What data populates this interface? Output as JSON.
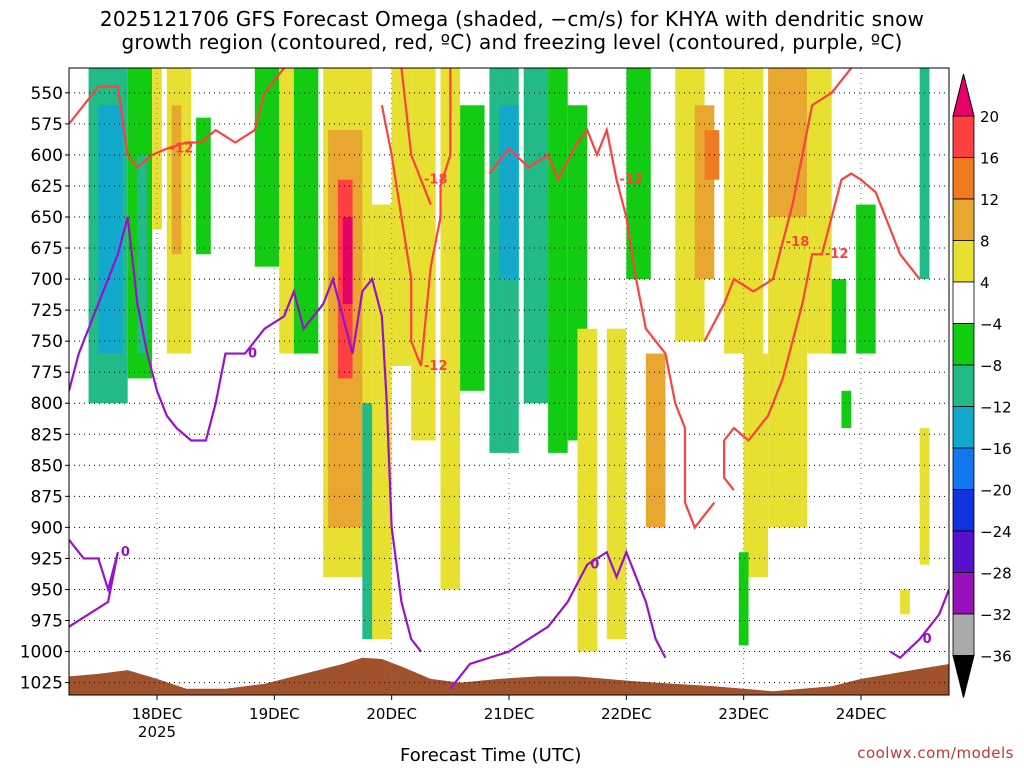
{
  "title_line1": "2025121706 GFS Forecast Omega (shaded, −cm/s) for KHYA with dendritic snow",
  "title_line2": "growth region (contoured, red, ºC) and freezing level (contoured, purple, ºC)",
  "x_axis_title": "Forecast Time (UTC)",
  "credit": "coolwx.com/models",
  "chart_data": {
    "type": "heatmap",
    "title": "2025121706 GFS Forecast Omega (shaded, −cm/s) for KHYA",
    "xlabel": "Forecast Time (UTC)",
    "ylabel": "",
    "x_ticks": [
      {
        "label": "18DEC",
        "sublabel": "2025",
        "hours": 18
      },
      {
        "label": "19DEC",
        "hours": 42
      },
      {
        "label": "20DEC",
        "hours": 66
      },
      {
        "label": "21DEC",
        "hours": 90
      },
      {
        "label": "22DEC",
        "hours": 114
      },
      {
        "label": "23DEC",
        "hours": 138
      },
      {
        "label": "24DEC",
        "hours": 162
      }
    ],
    "xlim_hours": [
      0,
      180
    ],
    "y_ticks": [
      550,
      575,
      600,
      625,
      650,
      675,
      700,
      725,
      750,
      775,
      800,
      825,
      850,
      875,
      900,
      925,
      950,
      975,
      1000,
      1025
    ],
    "ylim": [
      1035,
      530
    ],
    "colorbar": {
      "labels": [
        "20",
        "16",
        "12",
        "8",
        "4",
        "−4",
        "−8",
        "−12",
        "−16",
        "−20",
        "−24",
        "−28",
        "−32",
        "−36"
      ],
      "colors": [
        "#e8006a",
        "#ff4040",
        "#f07a20",
        "#e8a830",
        "#e8e030",
        "#ffffff",
        "#11cc11",
        "#22bb88",
        "#11aacc",
        "#1177ee",
        "#1133dd",
        "#5511cc",
        "#9911bb",
        "#aaaaaa",
        "#000000"
      ]
    },
    "cells": [
      {
        "x0": 4,
        "x1": 12,
        "p0": 530,
        "p1": 800,
        "c": 7
      },
      {
        "x0": 6,
        "x1": 11,
        "p0": 560,
        "p1": 760,
        "c": 8
      },
      {
        "x0": 12,
        "x1": 17,
        "p0": 530,
        "p1": 780,
        "c": 6
      },
      {
        "x0": 14,
        "x1": 16,
        "p0": 600,
        "p1": 760,
        "c": 7
      },
      {
        "x0": 17,
        "x1": 19,
        "p0": 530,
        "p1": 660,
        "c": 4
      },
      {
        "x0": 20,
        "x1": 25,
        "p0": 530,
        "p1": 760,
        "c": 4
      },
      {
        "x0": 21,
        "x1": 23,
        "p0": 560,
        "p1": 680,
        "c": 3
      },
      {
        "x0": 26,
        "x1": 29,
        "p0": 570,
        "p1": 680,
        "c": 6
      },
      {
        "x0": 38,
        "x1": 43,
        "p0": 530,
        "p1": 690,
        "c": 6
      },
      {
        "x0": 43,
        "x1": 46,
        "p0": 530,
        "p1": 760,
        "c": 4
      },
      {
        "x0": 46,
        "x1": 51,
        "p0": 530,
        "p1": 760,
        "c": 6
      },
      {
        "x0": 52,
        "x1": 62,
        "p0": 530,
        "p1": 940,
        "c": 4
      },
      {
        "x0": 53,
        "x1": 60,
        "p0": 580,
        "p1": 900,
        "c": 3
      },
      {
        "x0": 55,
        "x1": 58,
        "p0": 620,
        "p1": 780,
        "c": 1
      },
      {
        "x0": 56,
        "x1": 58,
        "p0": 650,
        "p1": 720,
        "c": 0
      },
      {
        "x0": 60,
        "x1": 65,
        "p0": 800,
        "p1": 990,
        "c": 7
      },
      {
        "x0": 62,
        "x1": 66,
        "p0": 640,
        "p1": 990,
        "c": 4
      },
      {
        "x0": 66,
        "x1": 70,
        "p0": 530,
        "p1": 770,
        "c": 4
      },
      {
        "x0": 70,
        "x1": 75,
        "p0": 530,
        "p1": 830,
        "c": 4
      },
      {
        "x0": 76,
        "x1": 80,
        "p0": 530,
        "p1": 950,
        "c": 4
      },
      {
        "x0": 80,
        "x1": 85,
        "p0": 560,
        "p1": 790,
        "c": 6
      },
      {
        "x0": 86,
        "x1": 92,
        "p0": 530,
        "p1": 840,
        "c": 7
      },
      {
        "x0": 88,
        "x1": 92,
        "p0": 560,
        "p1": 700,
        "c": 8
      },
      {
        "x0": 93,
        "x1": 98,
        "p0": 530,
        "p1": 800,
        "c": 7
      },
      {
        "x0": 98,
        "x1": 102,
        "p0": 530,
        "p1": 840,
        "c": 6
      },
      {
        "x0": 102,
        "x1": 106,
        "p0": 560,
        "p1": 830,
        "c": 6
      },
      {
        "x0": 104,
        "x1": 108,
        "p0": 740,
        "p1": 1000,
        "c": 4
      },
      {
        "x0": 110,
        "x1": 114,
        "p0": 740,
        "p1": 990,
        "c": 4
      },
      {
        "x0": 114,
        "x1": 119,
        "p0": 530,
        "p1": 700,
        "c": 6
      },
      {
        "x0": 118,
        "x1": 122,
        "p0": 760,
        "p1": 900,
        "c": 3
      },
      {
        "x0": 124,
        "x1": 130,
        "p0": 530,
        "p1": 750,
        "c": 4
      },
      {
        "x0": 128,
        "x1": 132,
        "p0": 560,
        "p1": 700,
        "c": 3
      },
      {
        "x0": 130,
        "x1": 133,
        "p0": 580,
        "p1": 620,
        "c": 2
      },
      {
        "x0": 134,
        "x1": 142,
        "p0": 530,
        "p1": 760,
        "c": 4
      },
      {
        "x0": 138,
        "x1": 143,
        "p0": 760,
        "p1": 940,
        "c": 4
      },
      {
        "x0": 137,
        "x1": 139,
        "p0": 920,
        "p1": 995,
        "c": 6
      },
      {
        "x0": 143,
        "x1": 151,
        "p0": 530,
        "p1": 650,
        "c": 3
      },
      {
        "x0": 143,
        "x1": 151,
        "p0": 650,
        "p1": 900,
        "c": 4
      },
      {
        "x0": 151,
        "x1": 156,
        "p0": 530,
        "p1": 760,
        "c": 4
      },
      {
        "x0": 156,
        "x1": 159,
        "p0": 700,
        "p1": 760,
        "c": 6
      },
      {
        "x0": 161,
        "x1": 165,
        "p0": 640,
        "p1": 760,
        "c": 6
      },
      {
        "x0": 158,
        "x1": 160,
        "p0": 790,
        "p1": 820,
        "c": 6
      },
      {
        "x0": 174,
        "x1": 176,
        "p0": 530,
        "p1": 700,
        "c": 7
      },
      {
        "x0": 174,
        "x1": 176,
        "p0": 820,
        "p1": 930,
        "c": 4
      },
      {
        "x0": 170,
        "x1": 172,
        "p0": 950,
        "p1": 970,
        "c": 4
      }
    ],
    "dgz_contours": [
      {
        "label": "-12",
        "values": [
          [
            0,
            575
          ],
          [
            3,
            560
          ],
          [
            6,
            545
          ],
          [
            10,
            545
          ],
          [
            12,
            600
          ],
          [
            14,
            610
          ],
          [
            17,
            600
          ],
          [
            20,
            595
          ],
          [
            24,
            590
          ],
          [
            27,
            590
          ],
          [
            30,
            580
          ],
          [
            34,
            590
          ],
          [
            38,
            580
          ],
          [
            40,
            550
          ],
          [
            44,
            530
          ]
        ]
      },
      {
        "label": "-18",
        "values": [
          [
            68,
            530
          ],
          [
            70,
            600
          ],
          [
            72,
            620
          ],
          [
            74,
            640
          ]
        ]
      },
      {
        "label": "-12",
        "values": [
          [
            78,
            530
          ],
          [
            78,
            600
          ],
          [
            76,
            625
          ],
          [
            76,
            650
          ],
          [
            74,
            690
          ],
          [
            72,
            770
          ],
          [
            70,
            750
          ],
          [
            70,
            700
          ],
          [
            68,
            650
          ],
          [
            66,
            600
          ],
          [
            64,
            560
          ]
        ]
      },
      {
        "label": "-12",
        "values": [
          [
            86,
            615
          ],
          [
            90,
            595
          ],
          [
            94,
            610
          ],
          [
            98,
            600
          ],
          [
            100,
            620
          ],
          [
            104,
            590
          ],
          [
            106,
            580
          ],
          [
            108,
            600
          ],
          [
            110,
            580
          ],
          [
            112,
            620
          ],
          [
            114,
            650
          ],
          [
            116,
            700
          ],
          [
            118,
            740
          ],
          [
            122,
            760
          ],
          [
            124,
            800
          ],
          [
            126,
            820
          ],
          [
            126,
            880
          ],
          [
            128,
            900
          ],
          [
            132,
            880
          ]
        ]
      },
      {
        "label": "-12",
        "values": [
          [
            136,
            870
          ],
          [
            134,
            860
          ],
          [
            134,
            830
          ],
          [
            136,
            820
          ],
          [
            139,
            830
          ],
          [
            143,
            810
          ],
          [
            146,
            780
          ],
          [
            148,
            750
          ],
          [
            150,
            720
          ],
          [
            152,
            680
          ],
          [
            154,
            680
          ],
          [
            156,
            650
          ],
          [
            158,
            620
          ],
          [
            160,
            615
          ],
          [
            162,
            620
          ],
          [
            165,
            630
          ],
          [
            167,
            650
          ],
          [
            170,
            680
          ],
          [
            172,
            690
          ],
          [
            174,
            700
          ]
        ]
      },
      {
        "label": "-18",
        "values": [
          [
            130,
            750
          ],
          [
            134,
            720
          ],
          [
            136,
            700
          ],
          [
            140,
            710
          ],
          [
            144,
            700
          ],
          [
            146,
            670
          ],
          [
            148,
            640
          ],
          [
            150,
            600
          ],
          [
            152,
            560
          ],
          [
            156,
            550
          ],
          [
            160,
            530
          ]
        ]
      }
    ],
    "freezing_contours": [
      {
        "label": "0",
        "values": [
          [
            0,
            790
          ],
          [
            2,
            760
          ],
          [
            4,
            740
          ],
          [
            6,
            720
          ],
          [
            8,
            700
          ],
          [
            10,
            680
          ],
          [
            12,
            650
          ],
          [
            14,
            720
          ],
          [
            16,
            760
          ],
          [
            18,
            790
          ],
          [
            20,
            810
          ],
          [
            22,
            820
          ],
          [
            25,
            830
          ],
          [
            28,
            830
          ],
          [
            30,
            800
          ],
          [
            32,
            760
          ],
          [
            36,
            760
          ],
          [
            40,
            740
          ],
          [
            44,
            730
          ],
          [
            46,
            710
          ],
          [
            48,
            740
          ],
          [
            52,
            720
          ],
          [
            54,
            700
          ],
          [
            58,
            760
          ],
          [
            60,
            710
          ],
          [
            62,
            700
          ],
          [
            64,
            730
          ],
          [
            65,
            800
          ],
          [
            66,
            900
          ],
          [
            68,
            960
          ],
          [
            70,
            990
          ],
          [
            72,
            1000
          ]
        ]
      },
      {
        "label": "0",
        "values": [
          [
            78,
            1030
          ],
          [
            82,
            1010
          ],
          [
            86,
            1005
          ],
          [
            90,
            1000
          ],
          [
            94,
            990
          ],
          [
            98,
            980
          ],
          [
            102,
            960
          ],
          [
            106,
            930
          ],
          [
            110,
            920
          ],
          [
            112,
            940
          ],
          [
            114,
            920
          ],
          [
            116,
            940
          ],
          [
            118,
            960
          ],
          [
            120,
            990
          ],
          [
            122,
            1005
          ]
        ]
      },
      {
        "label": "0",
        "values": [
          [
            0,
            910
          ],
          [
            3,
            925
          ],
          [
            6,
            925
          ],
          [
            8,
            950
          ],
          [
            10,
            920
          ],
          [
            8,
            960
          ],
          [
            4,
            970
          ],
          [
            0,
            980
          ]
        ]
      },
      {
        "label": "0",
        "values": [
          [
            168,
            1000
          ],
          [
            170,
            1005
          ],
          [
            174,
            990
          ],
          [
            178,
            970
          ],
          [
            180,
            950
          ]
        ]
      }
    ]
  }
}
